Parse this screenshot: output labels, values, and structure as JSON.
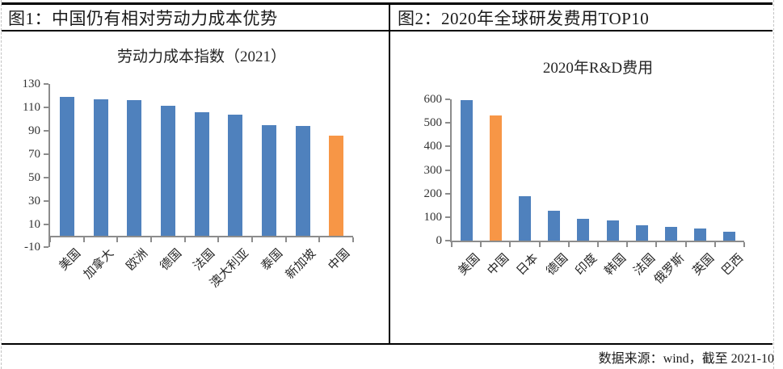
{
  "header_row": {
    "left": "图1：中国仍有相对劳动力成本优势",
    "right": "图2：2020年全球研发费用TOP10"
  },
  "footer": {
    "source_note": "数据来源：wind，截至 2021-10"
  },
  "colors": {
    "bar_default": "#4F81BD",
    "bar_highlight": "#F79646",
    "axis": "#8C8C8C"
  },
  "chart_data": [
    {
      "type": "bar",
      "title": "劳动力成本指数（2021）",
      "categories": [
        "美国",
        "加拿大",
        "欧洲",
        "德国",
        "法国",
        "澳大利亚",
        "泰国",
        "新加坡",
        "中国"
      ],
      "values": [
        119,
        117,
        116,
        111,
        106,
        104,
        95,
        94,
        86
      ],
      "highlight_index": 8,
      "highlight_category": "中国",
      "ylim": [
        -10,
        130
      ],
      "yticks": [
        -10,
        10,
        30,
        50,
        70,
        90,
        110,
        130
      ],
      "grid": false,
      "legend": "none",
      "xlabel": "",
      "ylabel": ""
    },
    {
      "type": "bar",
      "title": "2020年R&D费用",
      "categories": [
        "美国",
        "中国",
        "日本",
        "德国",
        "印度",
        "韩国",
        "法国",
        "俄罗斯",
        "英国",
        "巴西"
      ],
      "values": [
        597,
        533,
        190,
        128,
        93,
        87,
        65,
        58,
        52,
        37
      ],
      "highlight_index": 1,
      "highlight_category": "中国",
      "ylim": [
        0,
        600
      ],
      "yticks": [
        0,
        100,
        200,
        300,
        400,
        500,
        600
      ],
      "grid": false,
      "legend": "none",
      "xlabel": "",
      "ylabel": ""
    }
  ]
}
